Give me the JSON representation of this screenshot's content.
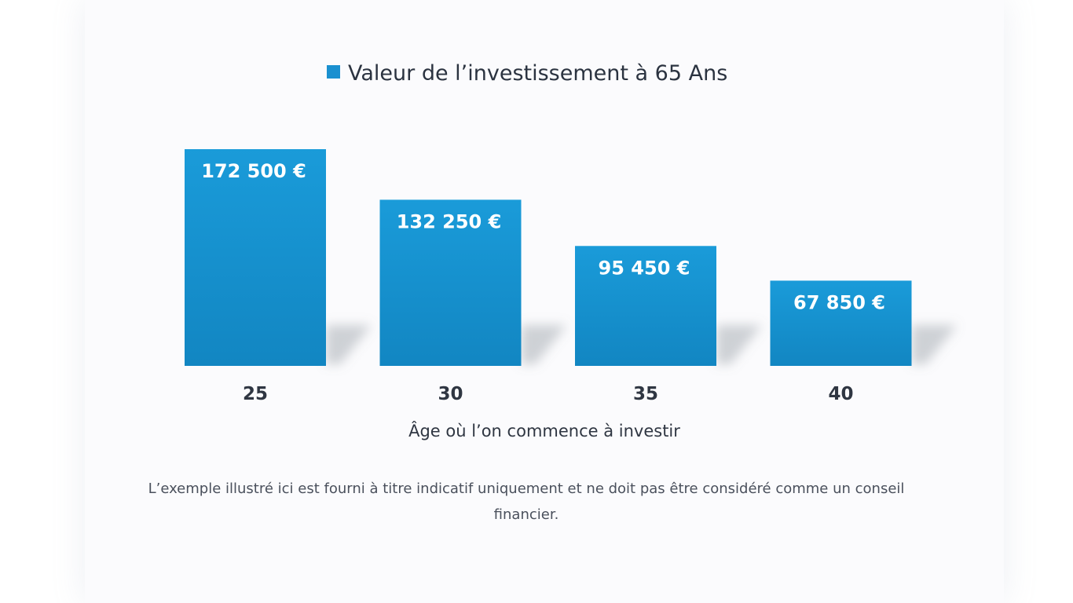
{
  "chart_data": {
    "type": "bar",
    "title": "Valeur de l’investissement à 65 Ans",
    "legend": [
      {
        "name": "Valeur de l’investissement à 65 Ans",
        "color": "#1a90d0"
      }
    ],
    "categories": [
      "25",
      "30",
      "35",
      "40"
    ],
    "values": [
      172500,
      132250,
      95450,
      67850
    ],
    "value_labels": [
      "172 500 €",
      "132 250 €",
      "95 450 €",
      "67 850 €"
    ],
    "xlabel": "Âge où l’on commence à investir",
    "ylabel": "",
    "ylim": [
      0,
      172500
    ],
    "grid": false,
    "legend_position": "top-center",
    "bar_color_top": "#1a9bd9",
    "bar_color_bottom": "#1286c2"
  },
  "disclaimer": "L’exemple illustré ici est fourni à titre indicatif uniquement et ne doit pas être considéré comme un conseil financier."
}
